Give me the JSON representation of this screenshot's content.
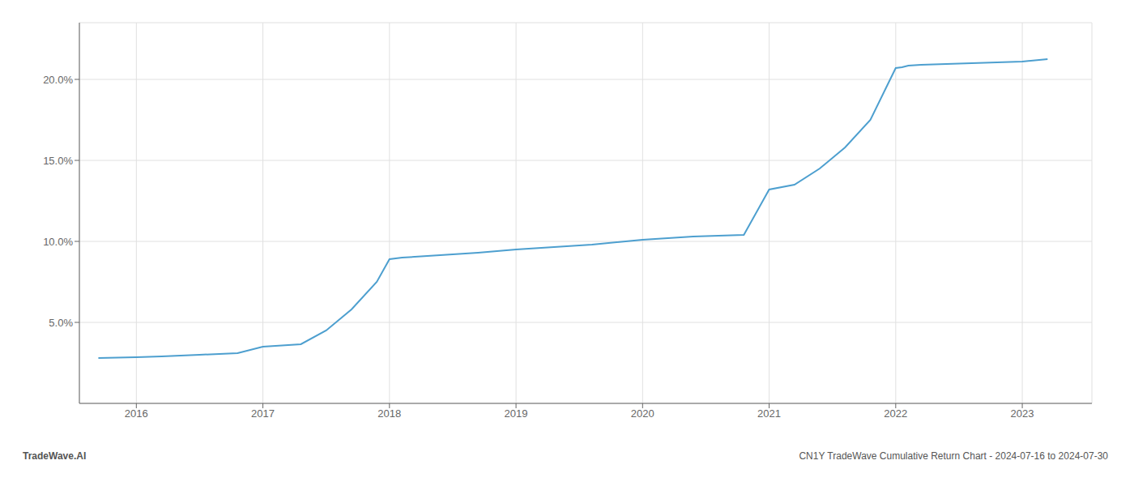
{
  "chart_data": {
    "type": "line",
    "x": [
      2015.7,
      2016.0,
      2016.2,
      2016.5,
      2016.8,
      2017.0,
      2017.1,
      2017.3,
      2017.5,
      2017.7,
      2017.9,
      2018.0,
      2018.1,
      2018.3,
      2018.5,
      2018.7,
      2019.0,
      2019.3,
      2019.6,
      2020.0,
      2020.2,
      2020.4,
      2020.6,
      2020.8,
      2021.0,
      2021.2,
      2021.4,
      2021.6,
      2021.8,
      2022.0,
      2022.05,
      2022.1,
      2022.2,
      2022.4,
      2022.6,
      2022.8,
      2023.0,
      2023.2
    ],
    "values": [
      2.8,
      2.85,
      2.9,
      3.0,
      3.1,
      3.5,
      3.55,
      3.65,
      4.5,
      5.8,
      7.5,
      8.9,
      9.0,
      9.1,
      9.2,
      9.3,
      9.5,
      9.65,
      9.8,
      10.1,
      10.2,
      10.3,
      10.35,
      10.4,
      13.2,
      13.5,
      14.5,
      15.8,
      17.5,
      20.7,
      20.75,
      20.85,
      20.9,
      20.95,
      21.0,
      21.05,
      21.1,
      21.25
    ],
    "color": "#4d9fcf",
    "xlim": [
      2015.55,
      2023.55
    ],
    "xticks": [
      2016,
      2017,
      2018,
      2019,
      2020,
      2021,
      2022,
      2023
    ],
    "ylim": [
      0.0,
      23.5
    ],
    "yticks": [
      {
        "value": 5.0,
        "label": "5.0%"
      },
      {
        "value": 10.0,
        "label": "10.0%"
      },
      {
        "value": 15.0,
        "label": "15.0%"
      },
      {
        "value": 20.0,
        "label": "20.0%"
      }
    ],
    "grid": true,
    "annotations": [
      "TradeWave.AI",
      "CN1Y TradeWave Cumulative Return Chart - 2024-07-16 to 2024-07-30"
    ]
  }
}
